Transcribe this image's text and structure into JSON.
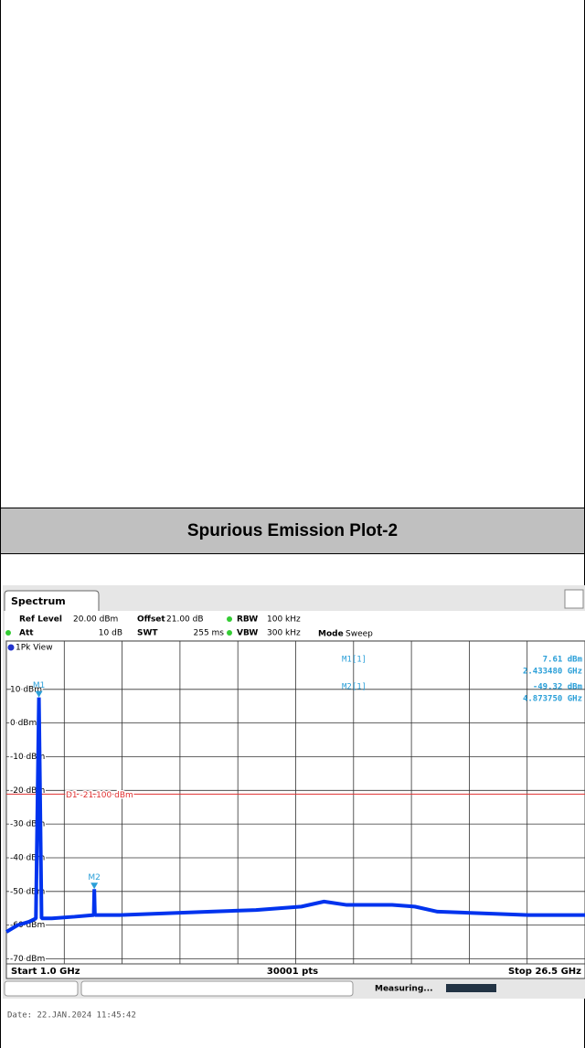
{
  "section_title": "Spurious Emission Plot-2",
  "spectrum": {
    "type": "line",
    "tab": "Spectrum",
    "settings": {
      "ref_level_label": "Ref Level",
      "ref_level": "20.00 dBm",
      "offset_label": "Offset",
      "offset": "21.00 dB",
      "rbw_label": "RBW",
      "rbw": "100 kHz",
      "att_label": "Att",
      "att": "10 dB",
      "swt_label": "SWT",
      "swt": "255 ms",
      "vbw_label": "VBW",
      "vbw": "300 kHz",
      "mode_label": "Mode",
      "mode": "Sweep"
    },
    "view": "1Pk View",
    "xlim": [
      1.0,
      26.5
    ],
    "ylim": [
      -71.5,
      20
    ],
    "xticks": [
      3.55,
      6.1,
      8.65,
      11.2,
      13.75,
      16.3,
      18.85,
      21.4,
      23.95
    ],
    "yticks": [
      {
        "value": 10,
        "label": "10 dBm"
      },
      {
        "value": 0,
        "label": "0 dBm"
      },
      {
        "value": -10,
        "label": "-10 dBm"
      },
      {
        "value": -20,
        "label": "-20 dBm"
      },
      {
        "value": -30,
        "label": "-30 dBm"
      },
      {
        "value": -40,
        "label": "-40 dBm"
      },
      {
        "value": -50,
        "label": "-50 dBm"
      },
      {
        "value": -60,
        "label": "-60 dBm"
      },
      {
        "value": -70,
        "label": "-70 dBm"
      }
    ],
    "grid": true,
    "series": [
      {
        "name": "1Pk",
        "color": "#0033ee",
        "x": [
          1.0,
          1.5,
          2.0,
          2.3,
          2.43348,
          2.55,
          3.0,
          4.0,
          4.85,
          4.87375,
          4.9,
          6.0,
          8.0,
          10.0,
          12.0,
          14.0,
          15.0,
          16.0,
          18.0,
          19.0,
          20.0,
          22.0,
          24.0,
          26.5
        ],
        "values": [
          -62,
          -60,
          -59,
          -58,
          7.61,
          -58,
          -58,
          -57.5,
          -57,
          -49.32,
          -57,
          -57,
          -56.5,
          -56,
          -55.5,
          -54.5,
          -53,
          -54,
          -54,
          -54.5,
          -56,
          -56.5,
          -57,
          -57
        ]
      }
    ],
    "display_line": {
      "label": "D1 -21.100 dBm",
      "value": -21.1,
      "color": "#e03030"
    },
    "markers": [
      {
        "name": "M1",
        "table_name": "M1[1]",
        "x": 2.43348,
        "y": 7.61,
        "x_label": "2.433480 GHz",
        "y_label": "7.61 dBm"
      },
      {
        "name": "M2",
        "table_name": "M2[1]",
        "x": 4.87375,
        "y": -49.32,
        "x_label": "4.873750 GHz",
        "y_label": "-49.32 dBm"
      }
    ],
    "start": "Start 1.0 GHz",
    "points": "30001 pts",
    "stop": "Stop 26.5 GHz",
    "status": "Measuring..."
  },
  "date": "Date: 22.JAN.2024  11:45:42"
}
